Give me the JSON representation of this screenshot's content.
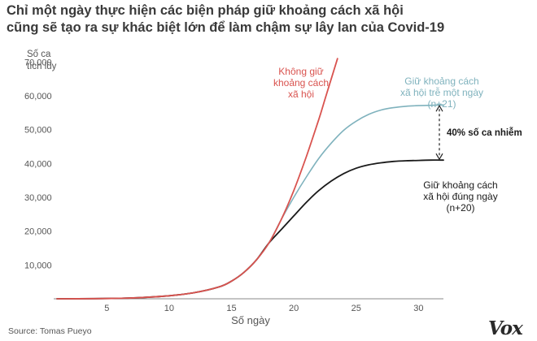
{
  "title_lines": [
    "Chỉ một ngày thực hiện các biện pháp giữ khoảng cách xã hội",
    "cũng sẽ tạo ra sự khác biệt lớn để làm chậm sự lây lan của Covid-19"
  ],
  "source": "Source: Tomas Pueyo",
  "logo": "Vox",
  "colors": {
    "no_distancing": "#d9534f",
    "late_distancing": "#7fb2bd",
    "on_time_distancing": "#1a1a1a",
    "axis_text": "#555555",
    "axis_line": "#888888"
  },
  "chart_data": {
    "type": "line",
    "xlabel": "Số ngày",
    "ylabel_lines": [
      "Số ca",
      "tích lũy"
    ],
    "xlim": [
      1,
      32
    ],
    "ylim": [
      0,
      72000
    ],
    "x_ticks": [
      5,
      10,
      15,
      20,
      25,
      30
    ],
    "y_ticks": [
      10000,
      20000,
      30000,
      40000,
      50000,
      60000,
      70000
    ],
    "y_tick_labels": [
      "10,000",
      "20,000",
      "30,000",
      "40,000",
      "50,000",
      "60,000",
      "70,000"
    ],
    "grid": false,
    "series": [
      {
        "key": "no_distancing",
        "label_lines": [
          "Không giữ",
          "khoảng cách",
          "xã hội"
        ],
        "x": [
          1,
          4,
          6,
          8,
          10,
          12,
          14,
          15,
          16,
          17,
          18,
          19,
          20,
          21,
          22,
          22.5,
          23,
          23.5
        ],
        "y": [
          0,
          50,
          150,
          400,
          900,
          1800,
          3500,
          5200,
          7800,
          11500,
          16500,
          23500,
          32000,
          42000,
          53000,
          59000,
          65000,
          71000
        ]
      },
      {
        "key": "late_distancing",
        "label_lines": [
          "Giữ khoảng cách",
          "xã hội trễ một ngày",
          "(n+21)"
        ],
        "x": [
          1,
          4,
          6,
          8,
          10,
          12,
          14,
          15,
          16,
          17,
          18,
          19,
          20,
          21,
          22,
          23,
          24,
          25,
          26,
          27,
          28,
          29,
          30,
          31,
          32
        ],
        "y": [
          0,
          50,
          150,
          400,
          900,
          1800,
          3500,
          5200,
          7800,
          11500,
          16500,
          23500,
          30000,
          36000,
          41500,
          46000,
          49800,
          52500,
          54500,
          55800,
          56500,
          56900,
          57100,
          57200,
          57300
        ]
      },
      {
        "key": "on_time_distancing",
        "label_lines": [
          "Giữ khoảng cách",
          "xã hội đúng ngày",
          "(n+20)"
        ],
        "x": [
          1,
          4,
          6,
          8,
          10,
          12,
          14,
          15,
          16,
          17,
          18,
          19,
          20,
          21,
          22,
          23,
          24,
          25,
          26,
          27,
          28,
          29,
          30,
          31,
          32
        ],
        "y": [
          0,
          50,
          150,
          400,
          900,
          1800,
          3500,
          5200,
          7800,
          11500,
          16500,
          20500,
          24500,
          28500,
          32000,
          34800,
          37000,
          38600,
          39600,
          40200,
          40600,
          40800,
          40900,
          41000,
          41000
        ]
      }
    ],
    "annotation": "40% số ca nhiễm"
  }
}
